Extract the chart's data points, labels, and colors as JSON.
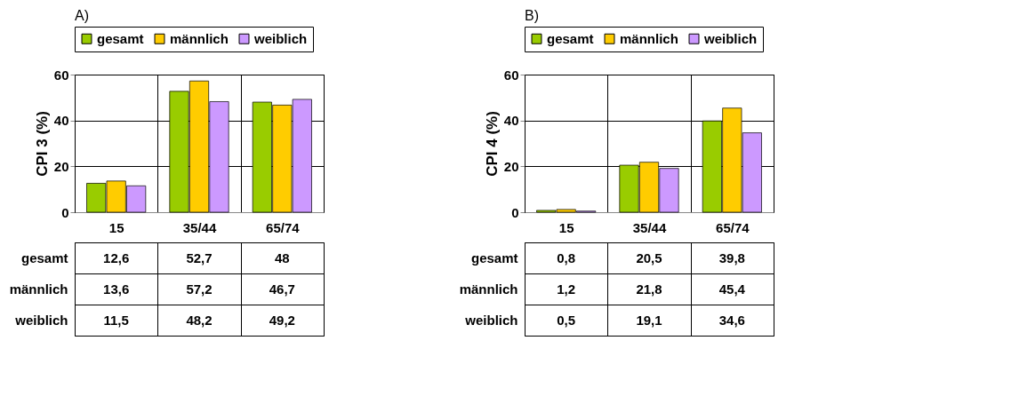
{
  "chart_data": [
    {
      "type": "bar",
      "title": "A)",
      "ylabel": "CPI 3 (%)",
      "categories": [
        "15",
        "35/44",
        "65/74"
      ],
      "ylim": [
        0,
        60
      ],
      "yticks": [
        0,
        20,
        40,
        60
      ],
      "grid": "y",
      "legend": "top",
      "series": [
        {
          "name": "gesamt",
          "color": "#99cc00",
          "values": [
            12.6,
            52.7,
            48
          ],
          "value_labels": [
            "12,6",
            "52,7",
            "48"
          ]
        },
        {
          "name": "männlich",
          "color": "#ffcc00",
          "values": [
            13.6,
            57.2,
            46.7
          ],
          "value_labels": [
            "13,6",
            "57,2",
            "46,7"
          ]
        },
        {
          "name": "weiblich",
          "color": "#cc99ff",
          "values": [
            11.5,
            48.2,
            49.2
          ],
          "value_labels": [
            "11,5",
            "48,2",
            "49,2"
          ]
        }
      ]
    },
    {
      "type": "bar",
      "title": "B)",
      "ylabel": "CPI 4 (%)",
      "categories": [
        "15",
        "35/44",
        "65/74"
      ],
      "ylim": [
        0,
        60
      ],
      "yticks": [
        0,
        20,
        40,
        60
      ],
      "grid": "y",
      "legend": "top",
      "series": [
        {
          "name": "gesamt",
          "color": "#99cc00",
          "values": [
            0.8,
            20.5,
            39.8
          ],
          "value_labels": [
            "0,8",
            "20,5",
            "39,8"
          ]
        },
        {
          "name": "männlich",
          "color": "#ffcc00",
          "values": [
            1.2,
            21.8,
            45.4
          ],
          "value_labels": [
            "1,2",
            "21,8",
            "45,4"
          ]
        },
        {
          "name": "weiblich",
          "color": "#cc99ff",
          "values": [
            0.5,
            19.1,
            34.6
          ],
          "value_labels": [
            "0,5",
            "19,1",
            "34,6"
          ]
        }
      ]
    }
  ]
}
